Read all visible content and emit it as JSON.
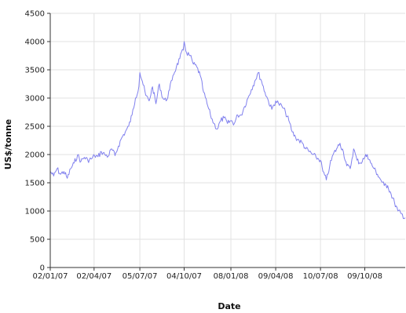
{
  "chart_data": {
    "type": "line",
    "title": "",
    "xlabel": "Date",
    "ylabel": "US$/tonne",
    "ylim": [
      0,
      4500
    ],
    "yticks": [
      0,
      500,
      1000,
      1500,
      2000,
      2500,
      3000,
      3500,
      4000,
      4500
    ],
    "xlim": [
      "2007-01-02",
      "2008-12-31"
    ],
    "x_tick_labels": [
      "02/01/07",
      "02/04/07",
      "05/07/07",
      "04/10/07",
      "08/01/08",
      "09/04/08",
      "10/07/08",
      "09/10/08"
    ],
    "x_tick_dates": [
      "2007-01-02",
      "2007-04-02",
      "2007-07-05",
      "2007-10-04",
      "2008-01-08",
      "2008-04-09",
      "2008-07-10",
      "2008-10-09"
    ],
    "grid": true,
    "line_color": "#8080ee",
    "series": [
      {
        "x": [
          "2007-01-02",
          "2007-01-09",
          "2007-01-16",
          "2007-01-23",
          "2007-01-30",
          "2007-02-06",
          "2007-02-13",
          "2007-02-20",
          "2007-02-27",
          "2007-03-06",
          "2007-03-13",
          "2007-03-20",
          "2007-03-27",
          "2007-04-03",
          "2007-04-10",
          "2007-04-17",
          "2007-04-24",
          "2007-05-01",
          "2007-05-08",
          "2007-05-15",
          "2007-05-22",
          "2007-05-29",
          "2007-06-05",
          "2007-06-12",
          "2007-06-19",
          "2007-06-26",
          "2007-07-03",
          "2007-07-05",
          "2007-07-10",
          "2007-07-17",
          "2007-07-24",
          "2007-07-31",
          "2007-08-07",
          "2007-08-14",
          "2007-08-21",
          "2007-08-28",
          "2007-09-04",
          "2007-09-11",
          "2007-09-18",
          "2007-09-25",
          "2007-10-02",
          "2007-10-04",
          "2007-10-09",
          "2007-10-16",
          "2007-10-23",
          "2007-10-30",
          "2007-11-06",
          "2007-11-13",
          "2007-11-20",
          "2007-11-27",
          "2007-12-04",
          "2007-12-11",
          "2007-12-18",
          "2007-12-25",
          "2008-01-01",
          "2008-01-08",
          "2008-01-15",
          "2008-01-22",
          "2008-01-29",
          "2008-02-05",
          "2008-02-12",
          "2008-02-19",
          "2008-02-26",
          "2008-03-04",
          "2008-03-11",
          "2008-03-18",
          "2008-03-25",
          "2008-04-01",
          "2008-04-09",
          "2008-04-15",
          "2008-04-22",
          "2008-04-29",
          "2008-05-06",
          "2008-05-13",
          "2008-05-20",
          "2008-05-27",
          "2008-06-03",
          "2008-06-10",
          "2008-06-17",
          "2008-06-24",
          "2008-07-01",
          "2008-07-10",
          "2008-07-15",
          "2008-07-22",
          "2008-07-29",
          "2008-08-05",
          "2008-08-12",
          "2008-08-19",
          "2008-08-26",
          "2008-09-02",
          "2008-09-09",
          "2008-09-16",
          "2008-09-23",
          "2008-09-30",
          "2008-10-09",
          "2008-10-14",
          "2008-10-21",
          "2008-10-28",
          "2008-11-04",
          "2008-11-11",
          "2008-11-18",
          "2008-11-25",
          "2008-12-02",
          "2008-12-09",
          "2008-12-16",
          "2008-12-23",
          "2008-12-31"
        ],
        "values": [
          1700,
          1620,
          1750,
          1650,
          1700,
          1580,
          1750,
          1850,
          1990,
          1880,
          1950,
          1900,
          1920,
          1980,
          1960,
          2050,
          2000,
          1970,
          2100,
          1980,
          2150,
          2300,
          2400,
          2500,
          2700,
          3000,
          3200,
          3450,
          3300,
          3050,
          2950,
          3200,
          2900,
          3250,
          3000,
          2950,
          3150,
          3400,
          3550,
          3700,
          3850,
          4000,
          3800,
          3750,
          3600,
          3550,
          3400,
          3100,
          2900,
          2700,
          2550,
          2450,
          2600,
          2650,
          2550,
          2600,
          2550,
          2700,
          2700,
          2850,
          3000,
          3150,
          3300,
          3450,
          3300,
          3100,
          2950,
          2800,
          2950,
          2900,
          2850,
          2750,
          2600,
          2400,
          2300,
          2250,
          2200,
          2100,
          2050,
          2000,
          1950,
          1900,
          1700,
          1550,
          1800,
          2000,
          2100,
          2200,
          2050,
          1800,
          1750,
          2100,
          1900,
          1850,
          1950,
          2000,
          1850,
          1750,
          1650,
          1550,
          1450,
          1450,
          1300,
          1150,
          1000,
          950,
          880
        ]
      }
    ]
  }
}
